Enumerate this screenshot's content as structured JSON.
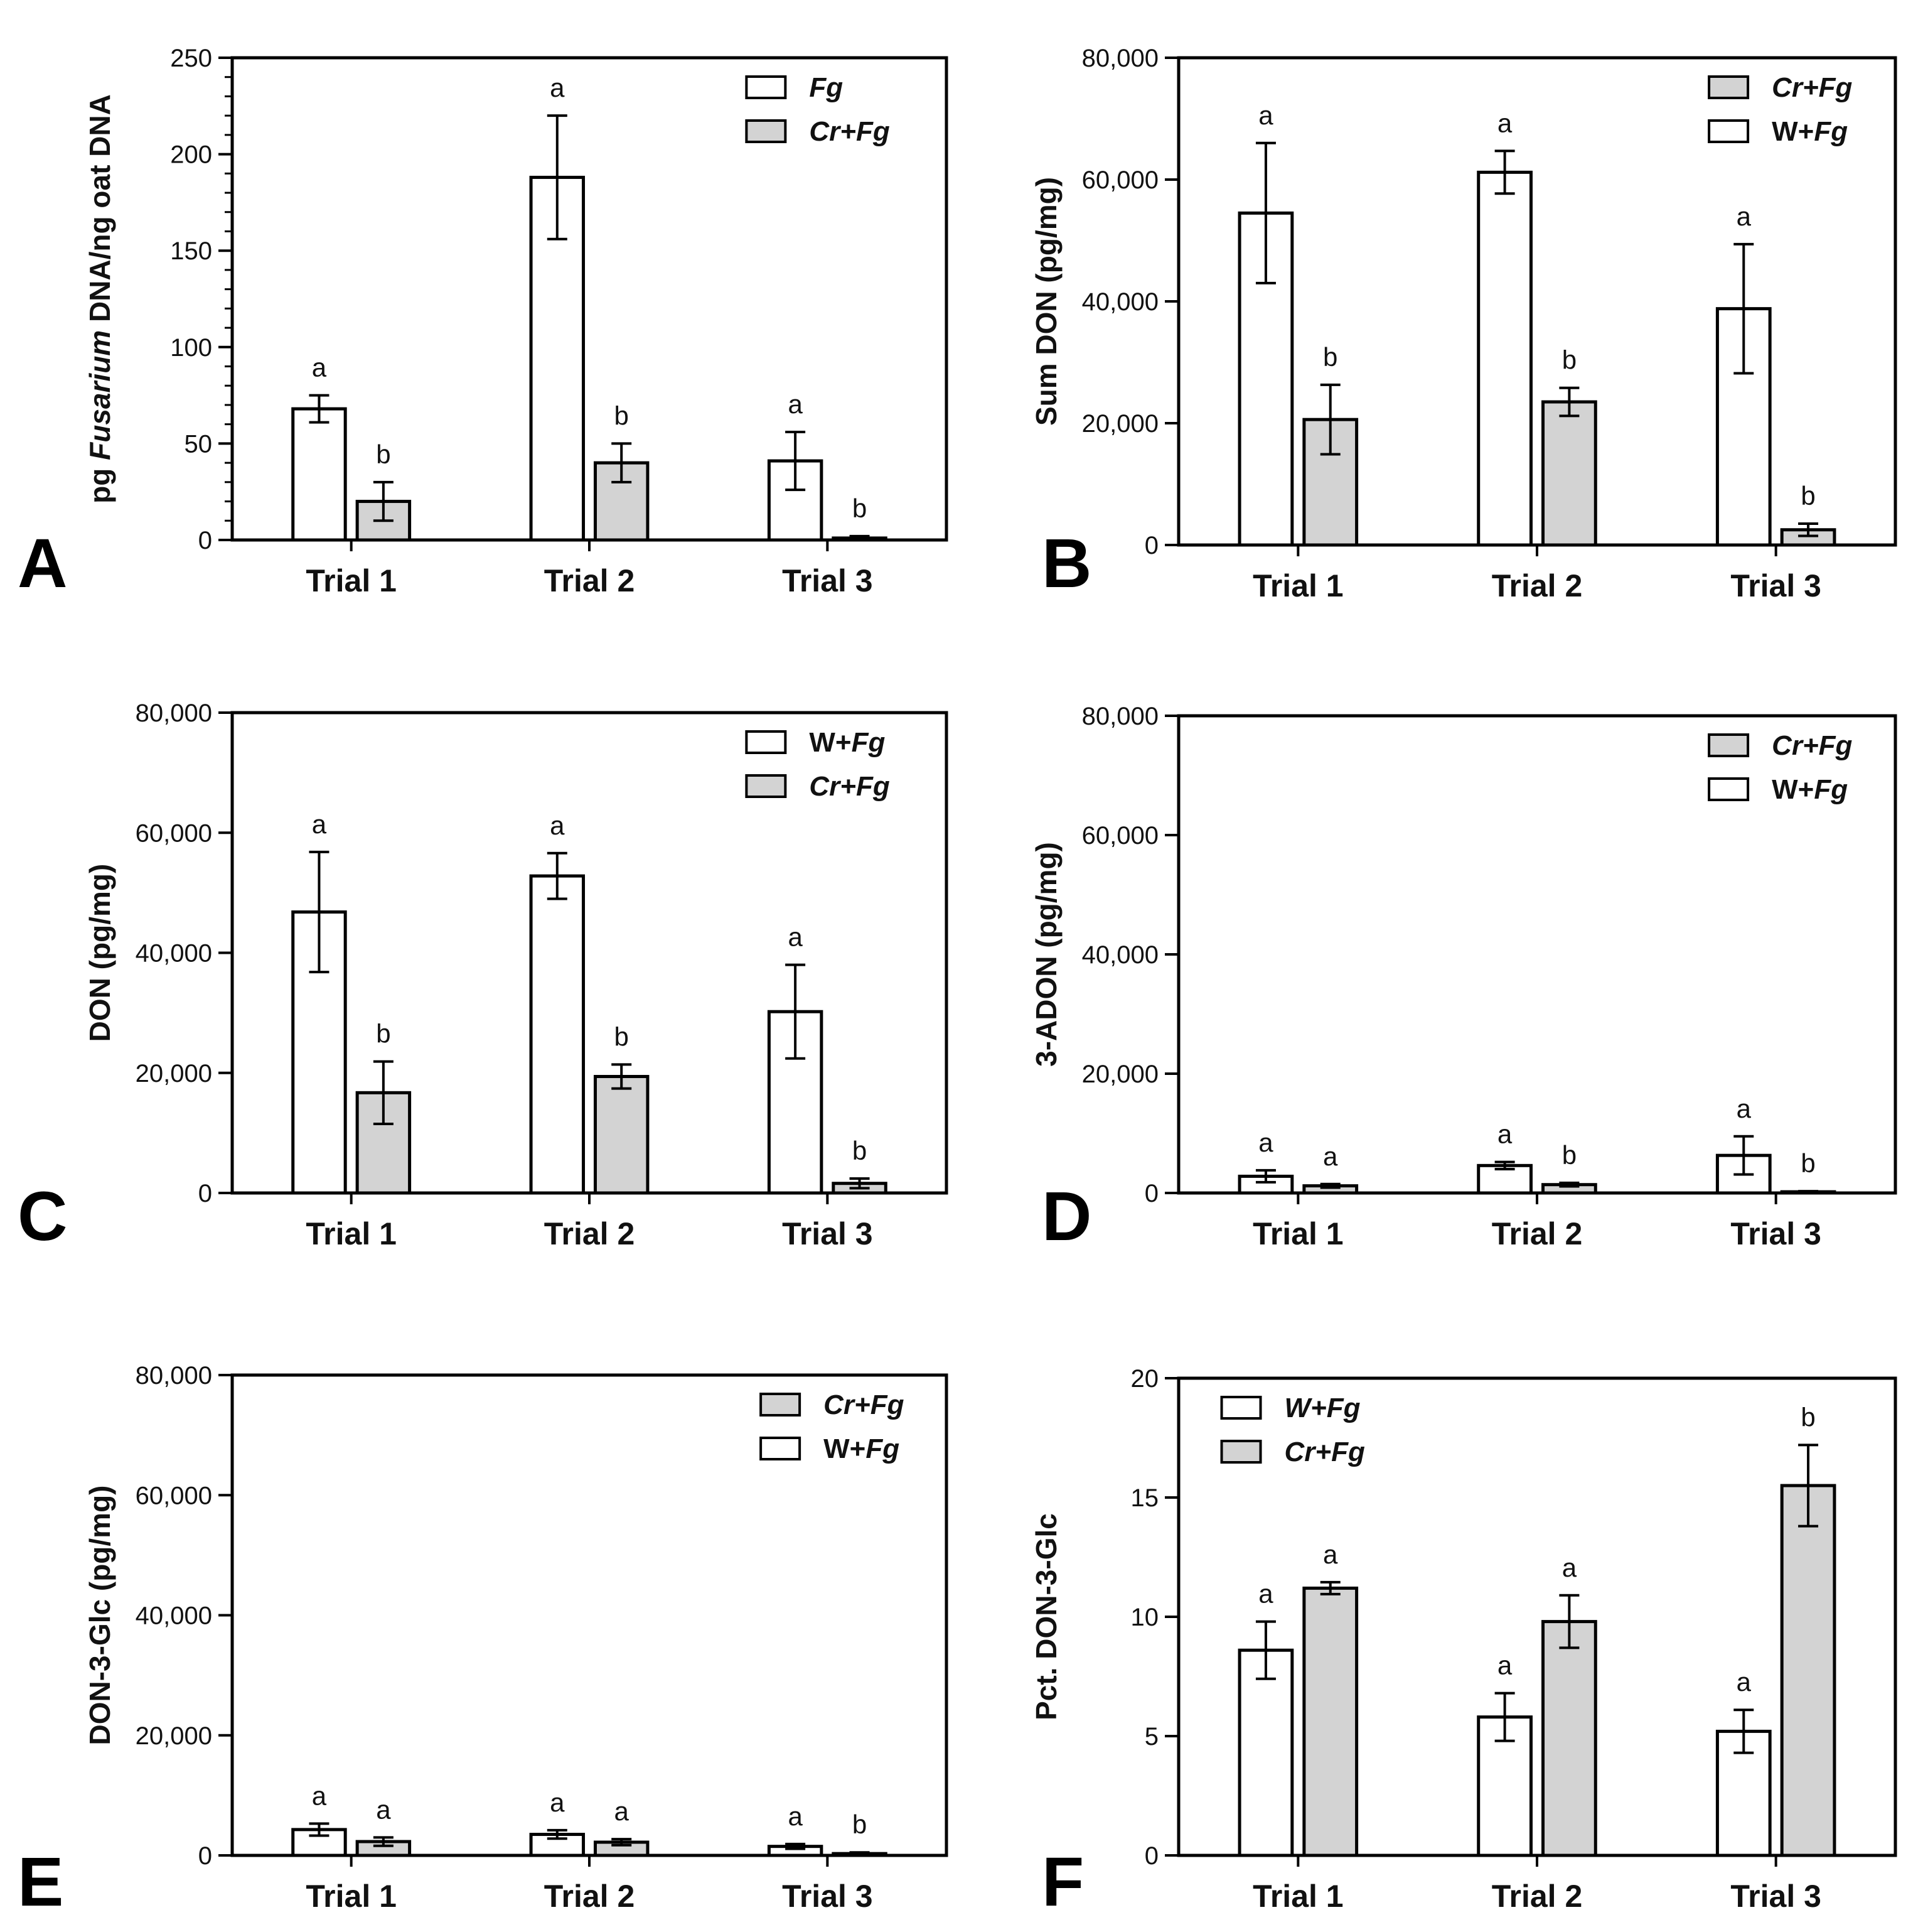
{
  "colors": {
    "fg_only": "#ffffff",
    "cr_fg": "#d3d3d3",
    "stroke": "#000000"
  },
  "chart_data": [
    {
      "panel": "A",
      "type": "bar",
      "categories": [
        "Trial 1",
        "Trial 2",
        "Trial 3"
      ],
      "ylabel": {
        "pre": "pg ",
        "ital": "Fusarium",
        "post": " DNA/ng oat DNA"
      },
      "ylim": [
        0,
        250
      ],
      "yticks": [
        0,
        50,
        100,
        150,
        200,
        250
      ],
      "tick_labels": [
        "0",
        "50",
        "100",
        "150",
        "200",
        "250"
      ],
      "minor_step": 10,
      "legend": [
        {
          "parts": [
            {
              "t": "Fg",
              "i": true
            }
          ],
          "series": 0
        },
        {
          "parts": [
            {
              "t": "Cr+Fg",
              "i": true
            }
          ],
          "series": 1
        }
      ],
      "legend_x_frac": 0.72,
      "series": [
        {
          "values": [
            68,
            188,
            41
          ],
          "errors": [
            7,
            32,
            15
          ],
          "labels": [
            "a",
            "a",
            "a"
          ],
          "fill": "#ffffff"
        },
        {
          "values": [
            20,
            40,
            1
          ],
          "errors": [
            10,
            10,
            1
          ],
          "labels": [
            "b",
            "b",
            "b"
          ],
          "fill": "#d3d3d3"
        }
      ]
    },
    {
      "panel": "B",
      "type": "bar",
      "categories": [
        "Trial 1",
        "Trial 2",
        "Trial 3"
      ],
      "ylabel": {
        "pre": "Sum DON (pg/mg)",
        "ital": "",
        "post": ""
      },
      "ylim": [
        0,
        80000
      ],
      "yticks": [
        0,
        20000,
        40000,
        60000,
        80000
      ],
      "tick_labels": [
        "0",
        "20,000",
        "40,000",
        "60,000",
        "80,000"
      ],
      "legend": [
        {
          "parts": [
            {
              "t": "Cr+Fg",
              "i": true
            }
          ],
          "series": 1
        },
        {
          "parts": [
            {
              "t": "W+",
              "i": false
            },
            {
              "t": "Fg",
              "i": true
            }
          ],
          "series": 0
        }
      ],
      "legend_x_frac": 0.74,
      "series": [
        {
          "values": [
            54500,
            61200,
            38800
          ],
          "errors": [
            11500,
            3500,
            10600
          ],
          "labels": [
            "a",
            "a",
            "a"
          ],
          "fill": "#ffffff"
        },
        {
          "values": [
            20600,
            23500,
            2500
          ],
          "errors": [
            5700,
            2300,
            1000
          ],
          "labels": [
            "b",
            "b",
            "b"
          ],
          "fill": "#d3d3d3"
        }
      ]
    },
    {
      "panel": "C",
      "type": "bar",
      "categories": [
        "Trial 1",
        "Trial 2",
        "Trial 3"
      ],
      "ylabel": {
        "pre": "DON (pg/mg)",
        "ital": "",
        "post": ""
      },
      "ylim": [
        0,
        80000
      ],
      "yticks": [
        0,
        20000,
        40000,
        60000,
        80000
      ],
      "tick_labels": [
        "0",
        "20,000",
        "40,000",
        "60,000",
        "80,000"
      ],
      "legend": [
        {
          "parts": [
            {
              "t": "W+",
              "i": false
            },
            {
              "t": "Fg",
              "i": true
            }
          ],
          "series": 0
        },
        {
          "parts": [
            {
              "t": "Cr+Fg",
              "i": true
            }
          ],
          "series": 1
        }
      ],
      "legend_x_frac": 0.72,
      "series": [
        {
          "values": [
            46800,
            52800,
            30200
          ],
          "errors": [
            10000,
            3800,
            7800
          ],
          "labels": [
            "a",
            "a",
            "a"
          ],
          "fill": "#ffffff"
        },
        {
          "values": [
            16700,
            19400,
            1600
          ],
          "errors": [
            5200,
            2000,
            800
          ],
          "labels": [
            "b",
            "b",
            "b"
          ],
          "fill": "#d3d3d3"
        }
      ]
    },
    {
      "panel": "D",
      "type": "bar",
      "categories": [
        "Trial 1",
        "Trial 2",
        "Trial 3"
      ],
      "ylabel": {
        "pre": "3-ADON (pg/mg)",
        "ital": "",
        "post": ""
      },
      "ylim": [
        0,
        80000
      ],
      "yticks": [
        0,
        20000,
        40000,
        60000,
        80000
      ],
      "tick_labels": [
        "0",
        "20,000",
        "40,000",
        "60,000",
        "80,000"
      ],
      "legend": [
        {
          "parts": [
            {
              "t": "Cr+Fg",
              "i": true
            }
          ],
          "series": 1
        },
        {
          "parts": [
            {
              "t": "W+",
              "i": false
            },
            {
              "t": "Fg",
              "i": true
            }
          ],
          "series": 0
        }
      ],
      "legend_x_frac": 0.74,
      "series": [
        {
          "values": [
            2800,
            4600,
            6300
          ],
          "errors": [
            1000,
            600,
            3200
          ],
          "labels": [
            "a",
            "a",
            "a"
          ],
          "fill": "#ffffff"
        },
        {
          "values": [
            1200,
            1400,
            200
          ],
          "errors": [
            300,
            300,
            100
          ],
          "labels": [
            "a",
            "b",
            "b"
          ],
          "fill": "#d3d3d3"
        }
      ]
    },
    {
      "panel": "E",
      "type": "bar",
      "categories": [
        "Trial 1",
        "Trial 2",
        "Trial 3"
      ],
      "ylabel": {
        "pre": "DON-3-Glc (pg/mg)",
        "ital": "",
        "post": ""
      },
      "ylim": [
        0,
        80000
      ],
      "yticks": [
        0,
        20000,
        40000,
        60000,
        80000
      ],
      "tick_labels": [
        "0",
        "20,000",
        "40,000",
        "60,000",
        "80,000"
      ],
      "legend": [
        {
          "parts": [
            {
              "t": "Cr+Fg",
              "i": true
            }
          ],
          "series": 1
        },
        {
          "parts": [
            {
              "t": "W+",
              "i": false
            },
            {
              "t": "Fg",
              "i": true
            }
          ],
          "series": 0
        }
      ],
      "legend_x_frac": 0.74,
      "series": [
        {
          "values": [
            4300,
            3500,
            1500
          ],
          "errors": [
            1000,
            700,
            400
          ],
          "labels": [
            "a",
            "a",
            "a"
          ],
          "fill": "#ffffff"
        },
        {
          "values": [
            2300,
            2200,
            300
          ],
          "errors": [
            700,
            500,
            200
          ],
          "labels": [
            "a",
            "a",
            "b"
          ],
          "fill": "#d3d3d3"
        }
      ]
    },
    {
      "panel": "F",
      "type": "bar",
      "categories": [
        "Trial 1",
        "Trial 2",
        "Trial 3"
      ],
      "ylabel": {
        "pre": "Pct. DON-3-Glc",
        "ital": "",
        "post": ""
      },
      "ylim": [
        0,
        20
      ],
      "yticks": [
        0,
        5,
        10,
        15,
        20
      ],
      "tick_labels": [
        "0",
        "5",
        "10",
        "15",
        "20"
      ],
      "legend": [
        {
          "parts": [
            {
              "t": "W+Fg",
              "i": true
            }
          ],
          "series": 0
        },
        {
          "parts": [
            {
              "t": "Cr+Fg",
              "i": true
            }
          ],
          "series": 1
        }
      ],
      "legend_x_frac": 0.06,
      "series": [
        {
          "values": [
            8.6,
            5.8,
            5.2
          ],
          "errors": [
            1.2,
            1.0,
            0.9
          ],
          "labels": [
            "a",
            "a",
            "a"
          ],
          "fill": "#ffffff"
        },
        {
          "values": [
            11.2,
            9.8,
            15.5
          ],
          "errors": [
            0.25,
            1.1,
            1.7
          ],
          "labels": [
            "a",
            "a",
            "b"
          ],
          "fill": "#d3d3d3"
        }
      ]
    }
  ]
}
